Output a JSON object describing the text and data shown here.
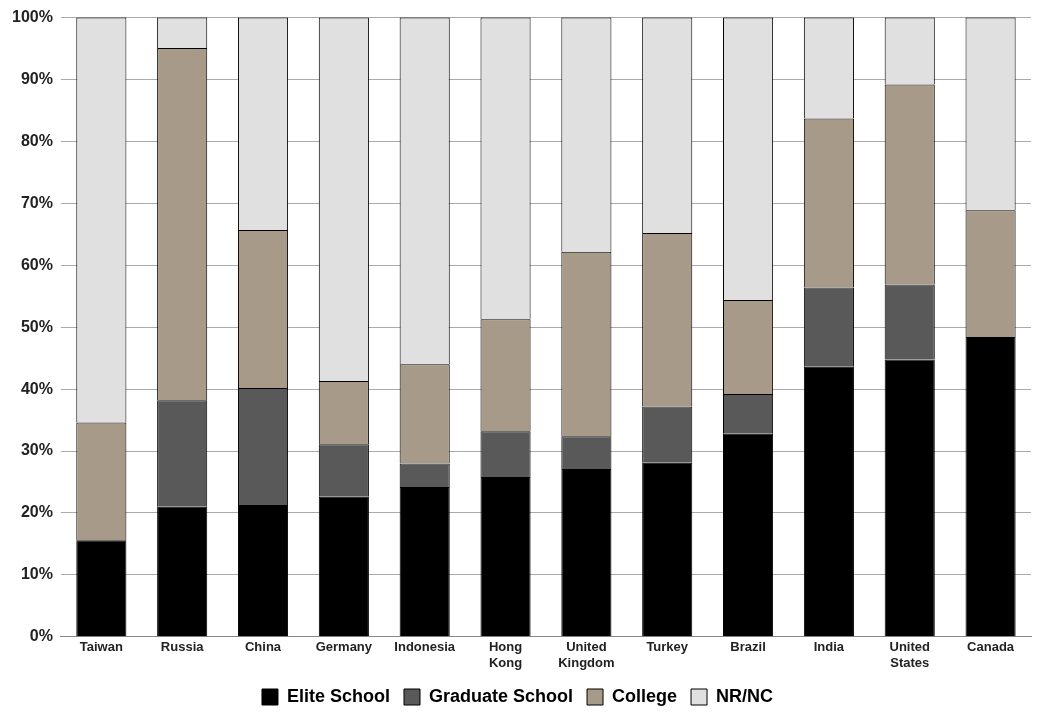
{
  "chart_data": {
    "type": "bar",
    "stacked": true,
    "categories": [
      "Taiwan",
      "Russia",
      "China",
      "Germany",
      "Indonesia",
      "Hong Kong",
      "United Kingdom",
      "Turkey",
      "Brazil",
      "India",
      "United States",
      "Canada"
    ],
    "series": [
      {
        "name": "Elite School",
        "color": "#000000",
        "values": [
          15.6,
          21.0,
          21.3,
          22.6,
          24.2,
          25.8,
          27.1,
          28.1,
          32.8,
          43.6,
          44.8,
          48.4
        ]
      },
      {
        "name": "Graduate School",
        "color": "#595959",
        "values": [
          0,
          17.2,
          18.9,
          8.5,
          3.8,
          7.4,
          5.3,
          9.1,
          6.4,
          12.8,
          12.1,
          0
        ]
      },
      {
        "name": "College",
        "color": "#a89a88",
        "values": [
          19.0,
          56.9,
          25.5,
          10.2,
          16.0,
          18.1,
          29.8,
          28.0,
          15.2,
          27.3,
          32.3,
          20.5
        ]
      },
      {
        "name": "NR/NC",
        "color": "#e0e0e0",
        "values": [
          65.4,
          4.9,
          34.3,
          58.7,
          56.0,
          48.7,
          37.8,
          34.8,
          45.6,
          16.3,
          10.8,
          31.1
        ]
      }
    ],
    "ylim": [
      0,
      100
    ],
    "yticks": [
      {
        "value": 0,
        "label": "0%"
      },
      {
        "value": 10,
        "label": "10%"
      },
      {
        "value": 20,
        "label": "20%"
      },
      {
        "value": 30,
        "label": "30%"
      },
      {
        "value": 40,
        "label": "40%"
      },
      {
        "value": 50,
        "label": "50%"
      },
      {
        "value": 60,
        "label": "60%"
      },
      {
        "value": 70,
        "label": "70%"
      },
      {
        "value": 80,
        "label": "80%"
      },
      {
        "value": 90,
        "label": "90%"
      },
      {
        "value": 100,
        "label": "100%"
      }
    ],
    "grid": "y",
    "legend": "bottom"
  }
}
